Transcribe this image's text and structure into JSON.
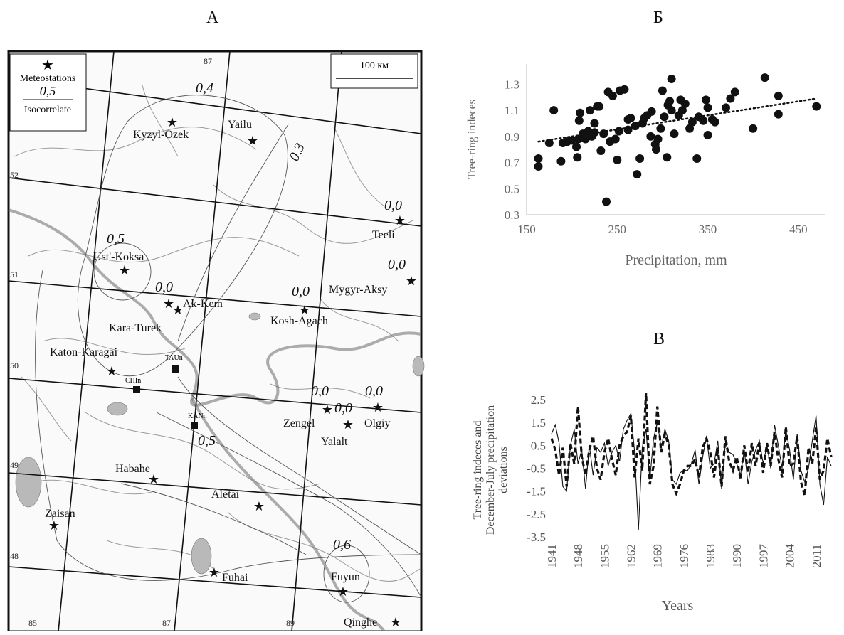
{
  "panel_letters": {
    "a": "А",
    "b": "Б",
    "c": "В"
  },
  "map": {
    "legend": {
      "meteo": "Meteostations",
      "iso_value": "0,5",
      "iso": "Isocorrelate"
    },
    "scale": "100 км",
    "lat_labels": [
      "52",
      "51",
      "50",
      "49",
      "48"
    ],
    "lon_labels": [
      "87",
      "85",
      "87",
      "89"
    ],
    "stations": [
      {
        "name": "Kyzyl-Ozek"
      },
      {
        "name": "Yailu"
      },
      {
        "name": "Teeli"
      },
      {
        "name": "Ust'-Koksa"
      },
      {
        "name": "Mygyr-Aksy"
      },
      {
        "name": "Ak-Kem"
      },
      {
        "name": "Kara-Turek"
      },
      {
        "name": "Kosh-Agach"
      },
      {
        "name": "Katon-Karagai"
      },
      {
        "name": "Zengel"
      },
      {
        "name": "Yalalt"
      },
      {
        "name": "Olgiy"
      },
      {
        "name": "Habahe"
      },
      {
        "name": "Aletai"
      },
      {
        "name": "Zaisan"
      },
      {
        "name": "Fuhai"
      },
      {
        "name": "Fuyun"
      },
      {
        "name": "Qinghe"
      }
    ],
    "sites": [
      "TAUn",
      "CHIn",
      "KANn"
    ],
    "iso_labels": [
      "0,4",
      "0,3",
      "0,0",
      "0,5",
      "0,0",
      "0,0",
      "0,0",
      "0,0",
      "0,0",
      "0,0",
      "0,5",
      "0,6"
    ]
  },
  "chart_data": [
    {
      "type": "scatter",
      "title": "",
      "xlabel": "Precipitation, mm",
      "ylabel": "Tree-ring indeces",
      "xlim": [
        150,
        480
      ],
      "ylim": [
        0.3,
        1.4
      ],
      "x_ticks": [
        150,
        250,
        350,
        450
      ],
      "y_ticks": [
        0.3,
        0.5,
        0.7,
        0.9,
        1.1,
        1.3
      ],
      "trendline": {
        "style": "dotted",
        "x": [
          163,
          470
        ],
        "y": [
          0.86,
          1.19
        ]
      },
      "points": [
        [
          163,
          0.73
        ],
        [
          163,
          0.67
        ],
        [
          175,
          0.85
        ],
        [
          180,
          1.1
        ],
        [
          188,
          0.71
        ],
        [
          190,
          0.85
        ],
        [
          195,
          0.86
        ],
        [
          200,
          0.87
        ],
        [
          205,
          0.82
        ],
        [
          206,
          0.74
        ],
        [
          207,
          0.88
        ],
        [
          208,
          1.02
        ],
        [
          209,
          1.08
        ],
        [
          212,
          0.92
        ],
        [
          215,
          0.88
        ],
        [
          218,
          0.94
        ],
        [
          220,
          1.1
        ],
        [
          222,
          0.9
        ],
        [
          225,
          0.93
        ],
        [
          225,
          1.0
        ],
        [
          228,
          1.13
        ],
        [
          230,
          1.13
        ],
        [
          232,
          0.79
        ],
        [
          235,
          0.92
        ],
        [
          238,
          0.4
        ],
        [
          240,
          1.24
        ],
        [
          242,
          0.86
        ],
        [
          245,
          1.21
        ],
        [
          248,
          0.88
        ],
        [
          250,
          0.72
        ],
        [
          252,
          0.94
        ],
        [
          253,
          1.25
        ],
        [
          258,
          1.26
        ],
        [
          262,
          0.95
        ],
        [
          262,
          1.03
        ],
        [
          265,
          1.04
        ],
        [
          270,
          0.98
        ],
        [
          272,
          0.61
        ],
        [
          275,
          0.73
        ],
        [
          278,
          1.0
        ],
        [
          280,
          1.04
        ],
        [
          283,
          1.06
        ],
        [
          287,
          0.9
        ],
        [
          288,
          1.09
        ],
        [
          292,
          0.84
        ],
        [
          293,
          0.8
        ],
        [
          295,
          0.88
        ],
        [
          298,
          0.96
        ],
        [
          300,
          1.25
        ],
        [
          302,
          1.05
        ],
        [
          305,
          0.74
        ],
        [
          306,
          1.14
        ],
        [
          308,
          1.17
        ],
        [
          310,
          1.1
        ],
        [
          310,
          1.34
        ],
        [
          313,
          0.92
        ],
        [
          318,
          1.06
        ],
        [
          320,
          1.18
        ],
        [
          322,
          1.1
        ],
        [
          325,
          1.15
        ],
        [
          330,
          0.96
        ],
        [
          333,
          1.01
        ],
        [
          338,
          0.73
        ],
        [
          340,
          1.05
        ],
        [
          345,
          1.02
        ],
        [
          348,
          1.18
        ],
        [
          350,
          1.12
        ],
        [
          350,
          0.91
        ],
        [
          355,
          1.03
        ],
        [
          358,
          1.01
        ],
        [
          370,
          1.12
        ],
        [
          375,
          1.19
        ],
        [
          380,
          1.24
        ],
        [
          400,
          0.96
        ],
        [
          413,
          1.35
        ],
        [
          428,
          1.21
        ],
        [
          428,
          1.07
        ],
        [
          470,
          1.13
        ]
      ]
    },
    {
      "type": "line",
      "title": "",
      "xlabel": "Years",
      "ylabel": [
        "Tree-ring indeces and",
        "December-July precipitation",
        "deviations"
      ],
      "xlim": [
        1941,
        2015
      ],
      "ylim": [
        -3.5,
        2.5
      ],
      "x_ticks": [
        1941,
        1948,
        1955,
        1962,
        1969,
        1976,
        1983,
        1990,
        1997,
        2004,
        2011
      ],
      "y_ticks": [
        2.5,
        1.5,
        0.5,
        -0.5,
        -1.5,
        -2.5,
        -3.5
      ],
      "x": [
        1941,
        1942,
        1943,
        1944,
        1945,
        1946,
        1947,
        1948,
        1949,
        1950,
        1951,
        1952,
        1953,
        1954,
        1955,
        1956,
        1957,
        1958,
        1959,
        1960,
        1961,
        1962,
        1963,
        1964,
        1965,
        1966,
        1967,
        1968,
        1969,
        1970,
        1971,
        1972,
        1973,
        1974,
        1975,
        1976,
        1977,
        1978,
        1979,
        1980,
        1981,
        1982,
        1983,
        1984,
        1985,
        1986,
        1987,
        1988,
        1989,
        1990,
        1991,
        1992,
        1993,
        1994,
        1995,
        1996,
        1997,
        1998,
        1999,
        2000,
        2001,
        2002,
        2003,
        2004,
        2005,
        2006,
        2007,
        2008,
        2009,
        2010,
        2011,
        2012,
        2013,
        2014,
        2015
      ],
      "series": [
        {
          "style": "solid",
          "values": [
            1.0,
            1.4,
            0.6,
            -1.3,
            -1.5,
            0.5,
            1.2,
            -0.3,
            0.3,
            -1.4,
            0.5,
            -0.8,
            0.4,
            0.2,
            0.6,
            -0.4,
            0.2,
            0.5,
            -0.2,
            1.2,
            1.6,
            1.9,
            0.2,
            -3.2,
            0.4,
            1.2,
            -1.0,
            0.8,
            1.5,
            0.4,
            1.2,
            0.7,
            -1.0,
            -1.2,
            -0.7,
            -0.6,
            -0.6,
            -0.3,
            0.3,
            -1.2,
            0.0,
            0.9,
            -0.5,
            -0.3,
            0.7,
            -1.4,
            0.6,
            0.2,
            0.1,
            -0.3,
            -0.8,
            0.3,
            -1.2,
            -0.2,
            0.3,
            0.7,
            -0.3,
            0.5,
            -0.5,
            1.4,
            0.5,
            -0.5,
            1.2,
            0.3,
            -1.0,
            1.0,
            -0.6,
            -1.1,
            -0.5,
            0.7,
            1.8,
            -1.2,
            -2.1,
            0.0,
            -0.4
          ]
        },
        {
          "style": "dashed",
          "values": [
            0.8,
            0.3,
            -0.8,
            0.4,
            -1.3,
            0.6,
            -0.3,
            2.2,
            0.0,
            -0.8,
            0.3,
            0.9,
            -0.5,
            -1.0,
            0.2,
            0.8,
            -0.1,
            -0.8,
            0.5,
            0.9,
            1.1,
            1.8,
            -0.9,
            0.8,
            -0.6,
            2.8,
            -1.2,
            -0.4,
            2.2,
            0.2,
            1.0,
            0.5,
            -1.2,
            -1.6,
            -1.2,
            -0.6,
            -0.4,
            -0.4,
            -0.1,
            -0.9,
            0.4,
            0.8,
            0.2,
            -0.9,
            0.4,
            -1.3,
            0.9,
            -0.2,
            -0.6,
            0.0,
            -1.0,
            0.5,
            -0.7,
            0.6,
            -0.4,
            0.6,
            -0.7,
            0.6,
            -0.4,
            1.1,
            -0.1,
            -0.9,
            1.3,
            -0.4,
            -0.3,
            0.9,
            -1.1,
            -1.7,
            0.4,
            -0.3,
            1.3,
            -1.0,
            -0.6,
            0.8,
            0.0
          ]
        }
      ]
    }
  ]
}
